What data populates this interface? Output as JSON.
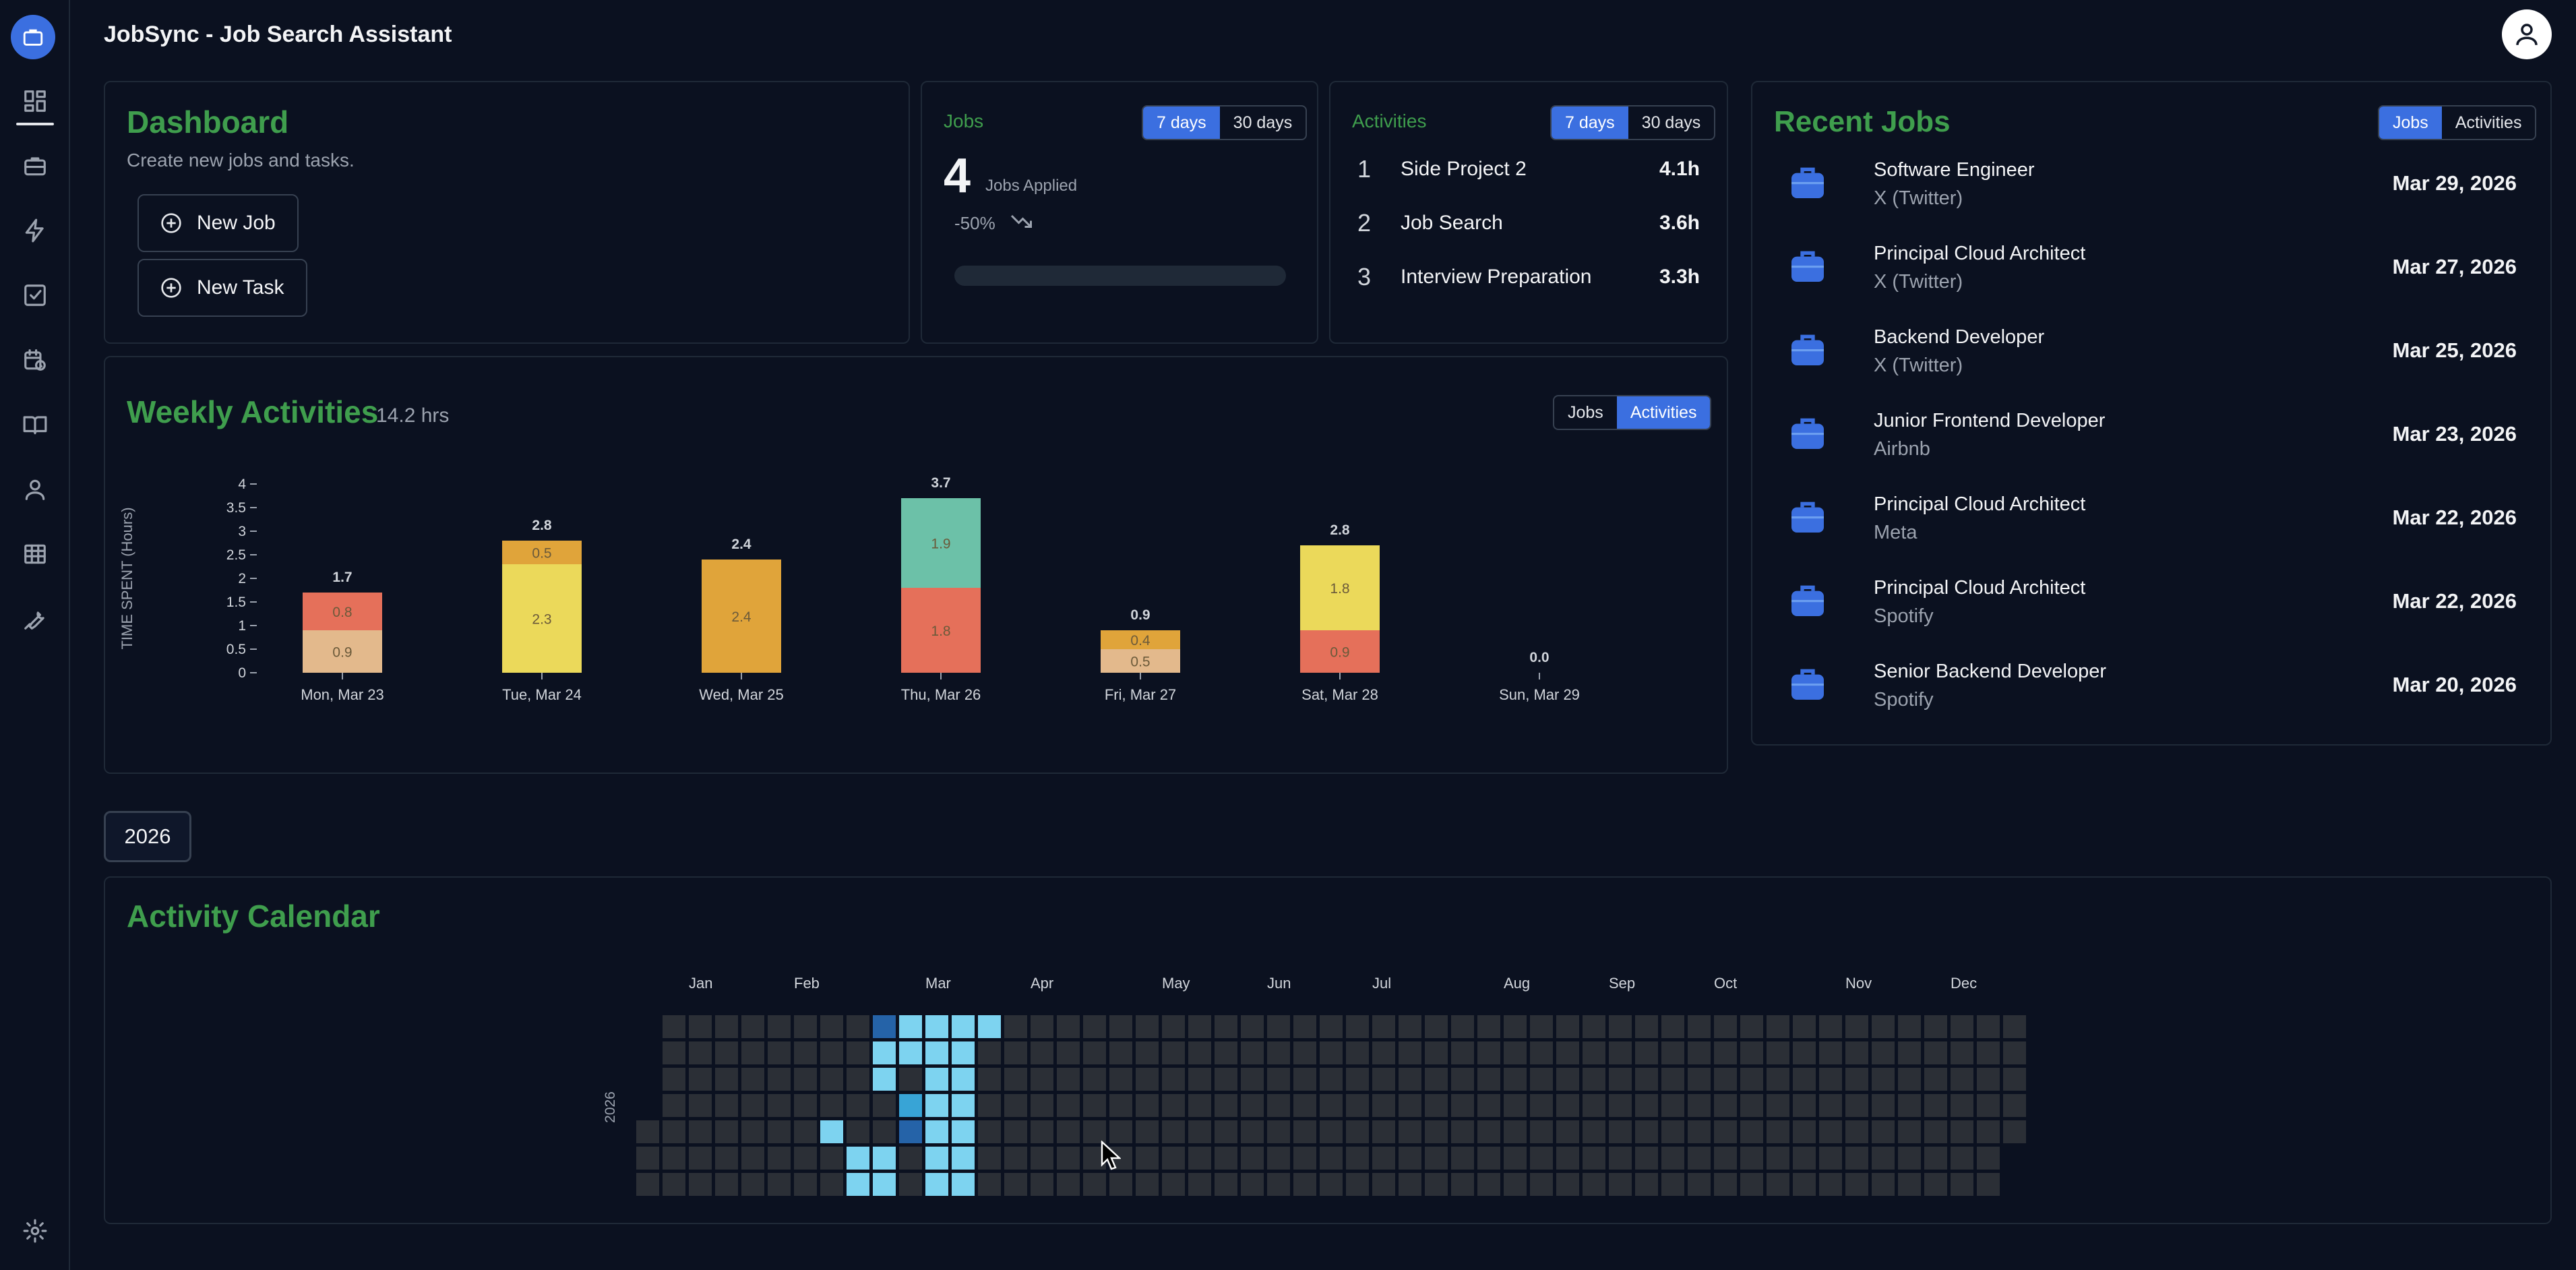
{
  "app": {
    "title": "JobSync - Job Search Assistant"
  },
  "sidebar": {
    "items": [
      {
        "icon": "dashboard-icon"
      },
      {
        "icon": "briefcase-icon"
      },
      {
        "icon": "lightning-icon"
      },
      {
        "icon": "checkbox-icon"
      },
      {
        "icon": "calendar-clock-icon"
      },
      {
        "icon": "book-icon"
      },
      {
        "icon": "user-icon"
      },
      {
        "icon": "table-icon"
      },
      {
        "icon": "wrench-icon"
      }
    ],
    "settings_icon": "gear-icon"
  },
  "dashboard": {
    "title": "Dashboard",
    "subtitle": "Create new jobs and tasks.",
    "new_job_label": "New Job",
    "new_task_label": "New Task"
  },
  "jobs_card": {
    "title": "Jobs",
    "toggle": [
      "7 days",
      "30 days"
    ],
    "count": "4",
    "count_label": "Jobs Applied",
    "change": "-50%",
    "progress": 0
  },
  "activities_card": {
    "title": "Activities",
    "toggle": [
      "7 days",
      "30 days"
    ],
    "items": [
      {
        "rank": "1",
        "name": "Side Project 2",
        "hours": "4.1h"
      },
      {
        "rank": "2",
        "name": "Job Search",
        "hours": "3.6h"
      },
      {
        "rank": "3",
        "name": "Interview Preparation",
        "hours": "3.3h"
      }
    ]
  },
  "recent_jobs": {
    "title": "Recent Jobs",
    "toggle": [
      "Jobs",
      "Activities"
    ],
    "items": [
      {
        "title": "Software Engineer",
        "company": "X (Twitter)",
        "date": "Mar 29, 2026"
      },
      {
        "title": "Principal Cloud Architect",
        "company": "X (Twitter)",
        "date": "Mar 27, 2026"
      },
      {
        "title": "Backend Developer",
        "company": "X (Twitter)",
        "date": "Mar 25, 2026"
      },
      {
        "title": "Junior Frontend Developer",
        "company": "Airbnb",
        "date": "Mar 23, 2026"
      },
      {
        "title": "Principal Cloud Architect",
        "company": "Meta",
        "date": "Mar 22, 2026"
      },
      {
        "title": "Principal Cloud Architect",
        "company": "Spotify",
        "date": "Mar 22, 2026"
      },
      {
        "title": "Senior Backend Developer",
        "company": "Spotify",
        "date": "Mar 20, 2026"
      }
    ]
  },
  "weekly": {
    "title": "Weekly Activities",
    "total": "14.2 hrs",
    "toggle": [
      "Jobs",
      "Activities"
    ]
  },
  "chart_data": {
    "type": "bar",
    "stacked": true,
    "ylabel": "TIME SPENT (Hours)",
    "ylim": [
      0,
      4
    ],
    "yticks": [
      "0",
      "0.5",
      "1",
      "1.5",
      "2",
      "2.5",
      "3",
      "3.5",
      "4"
    ],
    "categories": [
      "Mon, Mar 23",
      "Tue, Mar 24",
      "Wed, Mar 25",
      "Thu, Mar 26",
      "Fri, Mar 27",
      "Sat, Mar 28",
      "Sun, Mar 29"
    ],
    "totals": [
      "1.7",
      "2.8",
      "2.4",
      "3.7",
      "0.9",
      "2.8",
      "0.0"
    ],
    "segments": [
      [
        {
          "value": 0.9,
          "color": "#e3b98c"
        },
        {
          "value": 0.8,
          "color": "#e5705a"
        }
      ],
      [
        {
          "value": 2.3,
          "color": "#ebd95a"
        },
        {
          "value": 0.5,
          "color": "#e0a43a"
        }
      ],
      [
        {
          "value": 2.4,
          "color": "#e0a43a"
        }
      ],
      [
        {
          "value": 1.8,
          "color": "#e5705a"
        },
        {
          "value": 1.9,
          "color": "#6cc1a8"
        }
      ],
      [
        {
          "value": 0.5,
          "color": "#e3b98c"
        },
        {
          "value": 0.4,
          "color": "#e0a43a"
        }
      ],
      [
        {
          "value": 0.9,
          "color": "#e5705a"
        },
        {
          "value": 1.8,
          "color": "#ebd95a"
        }
      ],
      []
    ]
  },
  "calendar": {
    "year_chip": "2026",
    "title": "Activity Calendar",
    "year_label": "2026",
    "months": [
      "Jan",
      "Feb",
      "Mar",
      "Apr",
      "May",
      "Jun",
      "Jul",
      "Aug",
      "Sep",
      "Oct",
      "Nov",
      "Dec"
    ],
    "active_cells": [
      {
        "week": 9,
        "day": 0,
        "level": 3
      },
      {
        "week": 10,
        "day": 0,
        "level": 1
      },
      {
        "week": 11,
        "day": 0,
        "level": 1
      },
      {
        "week": 12,
        "day": 0,
        "level": 1
      },
      {
        "week": 13,
        "day": 0,
        "level": 1
      },
      {
        "week": 9,
        "day": 1,
        "level": 1
      },
      {
        "week": 10,
        "day": 1,
        "level": 1
      },
      {
        "week": 11,
        "day": 1,
        "level": 1
      },
      {
        "week": 12,
        "day": 1,
        "level": 1
      },
      {
        "week": 9,
        "day": 2,
        "level": 1
      },
      {
        "week": 11,
        "day": 2,
        "level": 1
      },
      {
        "week": 12,
        "day": 2,
        "level": 1
      },
      {
        "week": 10,
        "day": 3,
        "level": 2
      },
      {
        "week": 11,
        "day": 3,
        "level": 1
      },
      {
        "week": 12,
        "day": 3,
        "level": 1
      },
      {
        "week": 7,
        "day": 4,
        "level": 1
      },
      {
        "week": 10,
        "day": 4,
        "level": 3
      },
      {
        "week": 11,
        "day": 4,
        "level": 1
      },
      {
        "week": 12,
        "day": 4,
        "level": 1
      },
      {
        "week": 8,
        "day": 5,
        "level": 1
      },
      {
        "week": 9,
        "day": 5,
        "level": 1
      },
      {
        "week": 11,
        "day": 5,
        "level": 1
      },
      {
        "week": 12,
        "day": 5,
        "level": 1
      },
      {
        "week": 8,
        "day": 6,
        "level": 1
      },
      {
        "week": 9,
        "day": 6,
        "level": 1
      },
      {
        "week": 11,
        "day": 6,
        "level": 1
      },
      {
        "week": 12,
        "day": 6,
        "level": 1
      }
    ]
  }
}
